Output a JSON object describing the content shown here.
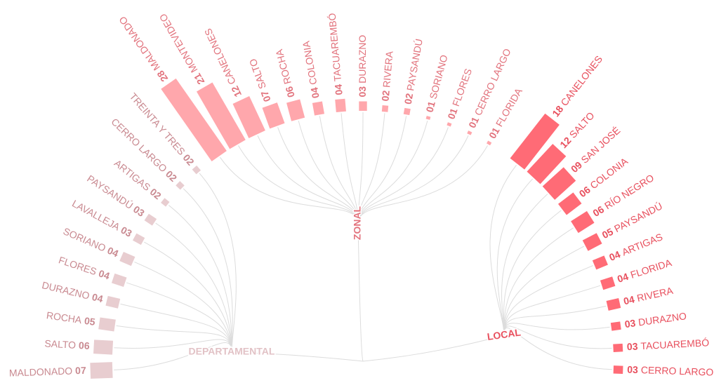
{
  "chart_data": {
    "type": "radial-bar",
    "series": [
      {
        "name": "DEPARTAMENTAL",
        "color": "#e8cdd0",
        "label_color": "#c98a91",
        "categories": [
          "MALDONADO",
          "SALTO",
          "ROCHA",
          "DURAZNO",
          "FLORES",
          "SORIANO",
          "LAVALLEJA",
          "PAYSANDÚ",
          "ARTIGAS",
          "CERRO LARGO",
          "TREINTA Y TRES"
        ],
        "values": [
          7,
          6,
          5,
          4,
          4,
          4,
          3,
          3,
          2,
          2,
          2
        ],
        "value_labels": [
          "07",
          "06",
          "05",
          "04",
          "04",
          "04",
          "03",
          "03",
          "02",
          "02",
          "02"
        ]
      },
      {
        "name": "ZONAL",
        "color": "#ffa7ac",
        "label_color": "#e2737d",
        "categories": [
          "MALDONADO",
          "MONTEVIDEO",
          "CANELONES",
          "SALTO",
          "ROCHA",
          "COLONIA",
          "TACUAREMBÓ",
          "DURAZNO",
          "RIVERA",
          "PAYSANDÚ",
          "SORIANO",
          "FLORES",
          "CERRO LARGO",
          "FLORIDA"
        ],
        "values": [
          28,
          21,
          12,
          7,
          6,
          4,
          4,
          3,
          2,
          2,
          1,
          1,
          1,
          1
        ],
        "value_labels": [
          "28",
          "21",
          "12",
          "07",
          "06",
          "04",
          "04",
          "03",
          "02",
          "02",
          "01",
          "01",
          "01",
          "01"
        ]
      },
      {
        "name": "LOCAL",
        "color": "#ff6b76",
        "label_color": "#e8505e",
        "categories": [
          "CANELONES",
          "SALTO",
          "SAN JOSÉ",
          "COLONIA",
          "RÍO NEGRO",
          "PAYSANDÚ",
          "ARTIGAS",
          "FLORIDA",
          "RIVERA",
          "DURAZNO",
          "TACUAREMBÓ",
          "CERRO LARGO"
        ],
        "values": [
          18,
          12,
          9,
          6,
          6,
          5,
          4,
          4,
          4,
          3,
          3,
          3
        ],
        "value_labels": [
          "18",
          "12",
          "09",
          "06",
          "06",
          "05",
          "04",
          "04",
          "04",
          "03",
          "03",
          "03"
        ]
      }
    ]
  }
}
